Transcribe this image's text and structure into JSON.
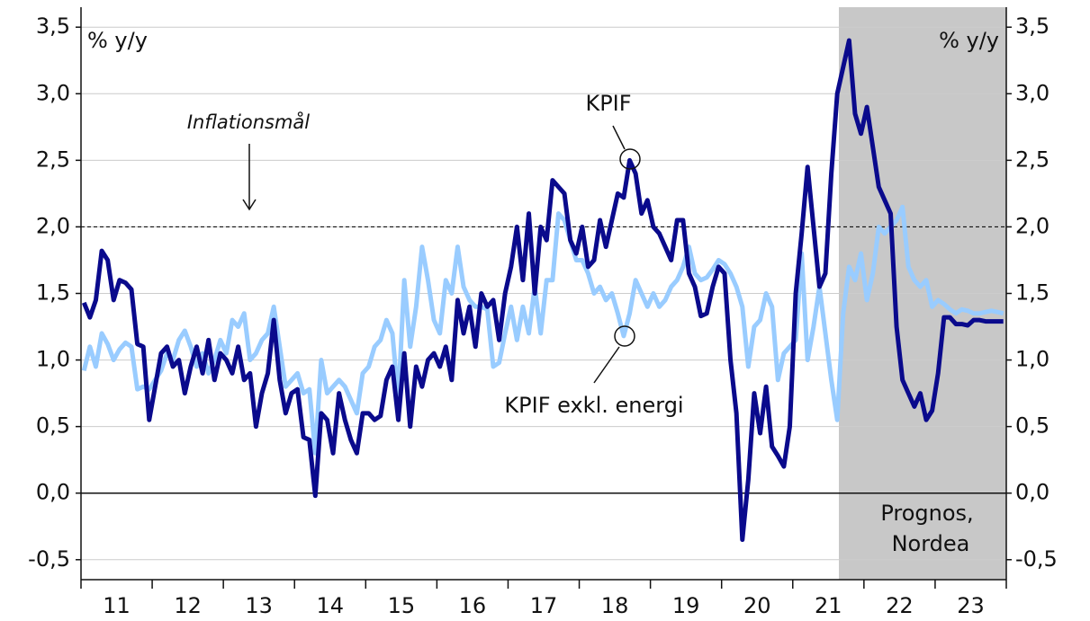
{
  "chart_data": {
    "type": "line",
    "y_label_left": "% y/y",
    "y_label_right": "% y/y",
    "categories": [
      null,
      null,
      null,
      null,
      null,
      null,
      "11",
      null,
      null,
      null,
      null,
      null,
      null,
      null,
      null,
      null,
      null,
      null,
      "12",
      null,
      null,
      null,
      null,
      null,
      null,
      null,
      null,
      null,
      null,
      null,
      "13",
      null,
      null,
      null,
      null,
      null,
      null,
      null,
      null,
      null,
      null,
      null,
      "14",
      null,
      null,
      null,
      null,
      null,
      null,
      null,
      null,
      null,
      null,
      null,
      "15",
      null,
      null,
      null,
      null,
      null,
      null,
      null,
      null,
      null,
      null,
      null,
      "16",
      null,
      null,
      null,
      null,
      null,
      null,
      null,
      null,
      null,
      null,
      null,
      "17",
      null,
      null,
      null,
      null,
      null,
      null,
      null,
      null,
      null,
      null,
      null,
      "18",
      null,
      null,
      null,
      null,
      null,
      null,
      null,
      null,
      null,
      null,
      null,
      "19",
      null,
      null,
      null,
      null,
      null,
      null,
      null,
      null,
      null,
      null,
      null,
      "20",
      null,
      null,
      null,
      null,
      null,
      null,
      null,
      null,
      null,
      null,
      null,
      "21",
      null,
      null,
      null,
      null,
      null,
      null,
      null,
      null,
      null,
      null,
      null,
      "22",
      null,
      null,
      null,
      null,
      null,
      null,
      null,
      null,
      null,
      null,
      null,
      "23",
      null,
      null,
      null,
      null,
      null
    ],
    "series": [
      {
        "name": "KPIF exkl. energi",
        "color": "#99ccff",
        "values": [
          0.92,
          1.1,
          0.95,
          1.2,
          1.12,
          1.0,
          1.08,
          1.13,
          1.1,
          0.78,
          0.8,
          0.78,
          0.85,
          0.92,
          1.05,
          1.0,
          1.15,
          1.22,
          1.1,
          0.95,
          1.05,
          0.9,
          1.0,
          1.15,
          1.05,
          1.3,
          1.25,
          1.35,
          1.0,
          1.05,
          1.15,
          1.2,
          1.4,
          1.1,
          0.8,
          0.85,
          0.9,
          0.75,
          0.78,
          0.3,
          1.0,
          0.75,
          0.8,
          0.85,
          0.8,
          0.7,
          0.6,
          0.9,
          0.95,
          1.1,
          1.15,
          1.3,
          1.2,
          0.7,
          1.6,
          1.1,
          1.4,
          1.85,
          1.6,
          1.3,
          1.2,
          1.6,
          1.5,
          1.85,
          1.55,
          1.45,
          1.4,
          1.4,
          1.38,
          0.95,
          0.98,
          1.2,
          1.4,
          1.15,
          1.4,
          1.2,
          1.55,
          1.2,
          1.6,
          1.6,
          2.1,
          2.05,
          1.9,
          1.75,
          1.75,
          1.65,
          1.5,
          1.55,
          1.45,
          1.5,
          1.35,
          1.18,
          1.35,
          1.6,
          1.5,
          1.4,
          1.5,
          1.4,
          1.45,
          1.55,
          1.6,
          1.7,
          1.85,
          1.65,
          1.6,
          1.62,
          1.68,
          1.75,
          1.72,
          1.65,
          1.55,
          1.4,
          0.95,
          1.25,
          1.3,
          1.5,
          1.4,
          0.85,
          1.05,
          1.1,
          1.15,
          1.8,
          1.0,
          1.25,
          1.55,
          1.2,
          0.85,
          0.55,
          1.35,
          1.7,
          1.6,
          1.8,
          1.45,
          1.65,
          2.0,
          1.95,
          2.0,
          2.05,
          2.15,
          1.7,
          1.6,
          1.55,
          1.6,
          1.4,
          1.45,
          1.42,
          1.38,
          1.35,
          1.38,
          1.37,
          1.35,
          1.35,
          1.36,
          1.37,
          1.36,
          1.35
        ]
      },
      {
        "name": "KPIF",
        "color": "#0a0a8c",
        "values": [
          1.43,
          1.32,
          1.45,
          1.82,
          1.75,
          1.45,
          1.6,
          1.58,
          1.53,
          1.12,
          1.1,
          0.55,
          0.8,
          1.05,
          1.1,
          0.95,
          1.0,
          0.75,
          0.95,
          1.1,
          0.9,
          1.15,
          0.85,
          1.05,
          1.0,
          0.9,
          1.1,
          0.85,
          0.9,
          0.5,
          0.75,
          0.9,
          1.3,
          0.85,
          0.6,
          0.75,
          0.78,
          0.42,
          0.4,
          -0.02,
          0.6,
          0.55,
          0.3,
          0.75,
          0.55,
          0.4,
          0.3,
          0.6,
          0.6,
          0.55,
          0.58,
          0.85,
          0.95,
          0.55,
          1.05,
          0.5,
          0.95,
          0.8,
          1.0,
          1.05,
          0.95,
          1.1,
          0.85,
          1.45,
          1.2,
          1.4,
          1.1,
          1.5,
          1.4,
          1.45,
          1.15,
          1.5,
          1.7,
          2.0,
          1.6,
          2.1,
          1.5,
          2.0,
          1.9,
          2.35,
          2.3,
          2.25,
          1.9,
          1.8,
          2.0,
          1.7,
          1.75,
          2.05,
          1.85,
          2.05,
          2.25,
          2.22,
          2.5,
          2.4,
          2.1,
          2.2,
          2.0,
          1.95,
          1.85,
          1.75,
          2.05,
          2.05,
          1.65,
          1.55,
          1.33,
          1.35,
          1.55,
          1.7,
          1.65,
          1.0,
          0.6,
          -0.35,
          0.1,
          0.75,
          0.45,
          0.8,
          0.35,
          0.28,
          0.2,
          0.5,
          1.5,
          1.95,
          2.45,
          2.0,
          1.55,
          1.65,
          2.4,
          3.0,
          3.2,
          3.4,
          2.85,
          2.7,
          2.9,
          2.6,
          2.3,
          2.2,
          2.1,
          1.25,
          0.85,
          0.75,
          0.65,
          0.75,
          0.55,
          0.62,
          0.9,
          1.32,
          1.32,
          1.27,
          1.27,
          1.26,
          1.3,
          1.3,
          1.29,
          1.29,
          1.29,
          1.29
        ]
      }
    ],
    "ylim": [
      -0.65,
      3.65
    ],
    "yticks": [
      {
        "value": -0.5,
        "label": "-0,5"
      },
      {
        "value": 0,
        "label": "0,0"
      },
      {
        "value": 0.5,
        "label": "0,5"
      },
      {
        "value": 1,
        "label": "1,0"
      },
      {
        "value": 1.5,
        "label": "1,5"
      },
      {
        "value": 2,
        "label": "2,0"
      },
      {
        "value": 2.5,
        "label": "2,5"
      },
      {
        "value": 3,
        "label": "3,0"
      },
      {
        "value": 3.5,
        "label": "3,5"
      }
    ],
    "grid": true,
    "reference_line": {
      "value": 2,
      "label": "Inflationsmål"
    },
    "annotations": [
      "KPIF",
      "KPIF exkl. energi",
      "Prognos,",
      "Nordea"
    ]
  }
}
